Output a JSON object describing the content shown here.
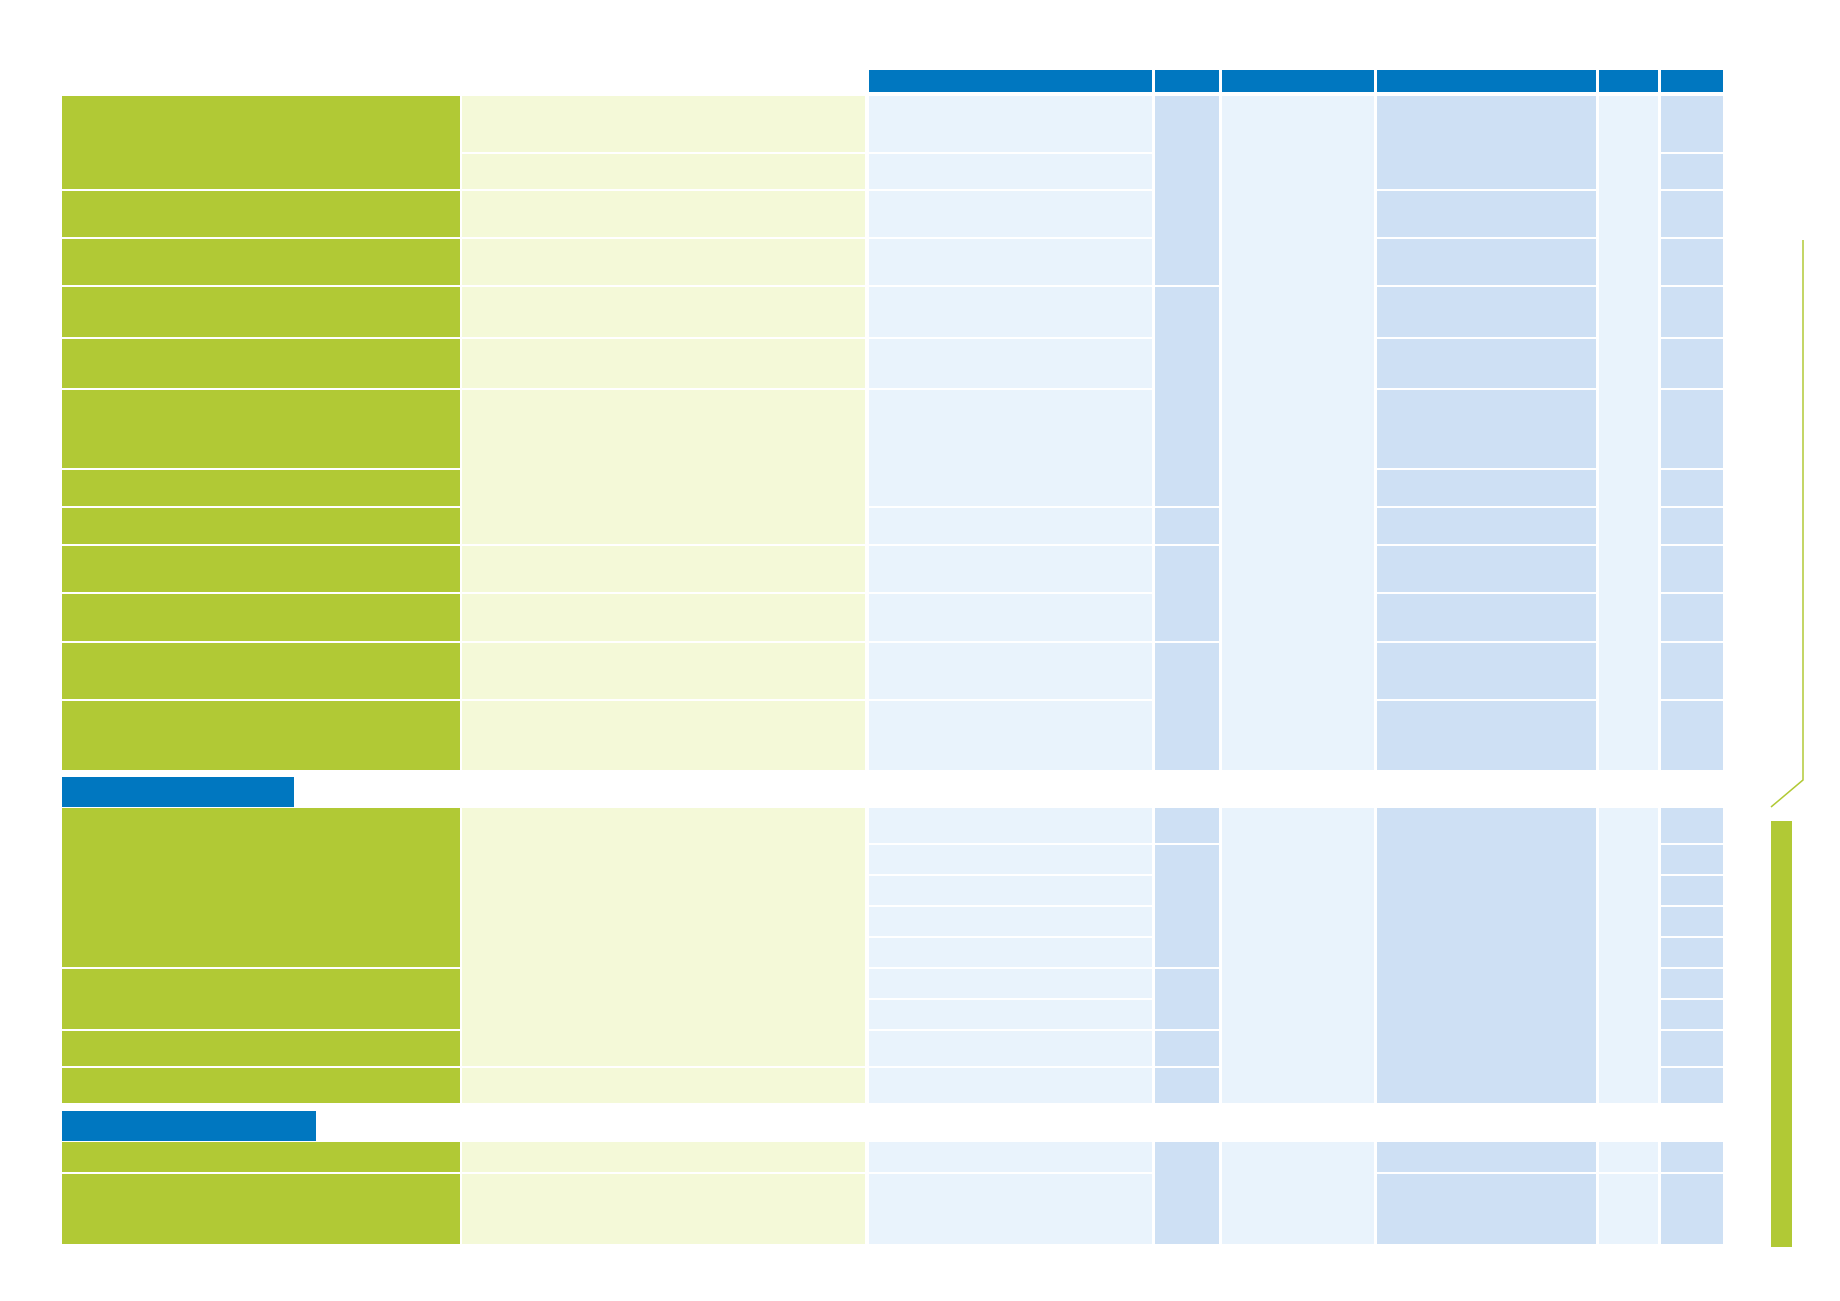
{
  "colors": {
    "header_blue": "#0077c0",
    "olive_green": "#b1c935",
    "pale_green": "#f4f9d8",
    "light_blue": "#e9f3fc",
    "mid_blue": "#cee0f4",
    "white": "#ffffff"
  },
  "table": {
    "headers": [
      "",
      "",
      "",
      "",
      "",
      ""
    ],
    "section_1_title": "",
    "section_2_title": ""
  }
}
